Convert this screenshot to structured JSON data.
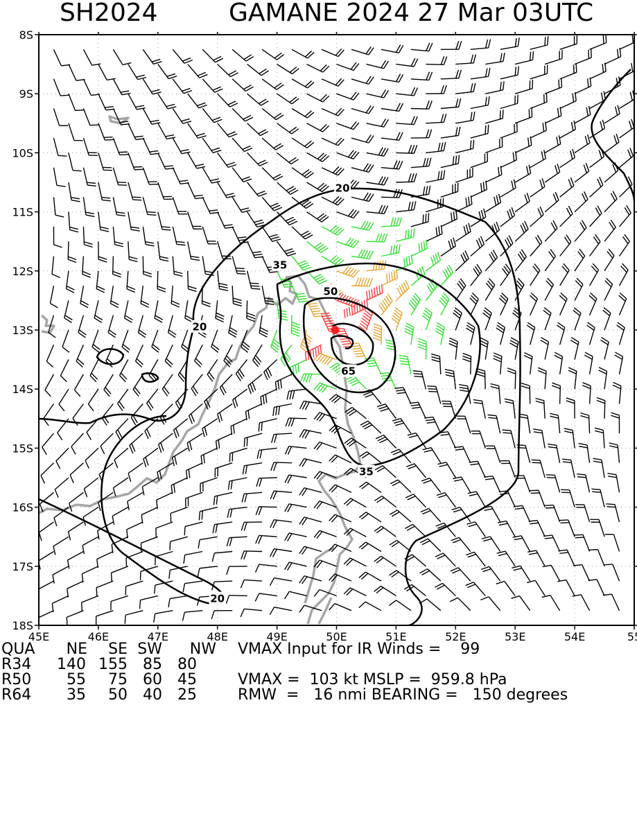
{
  "header": {
    "basin_id": "SH2024",
    "storm": "GAMANE 2024 27 Mar 03UTC"
  },
  "map": {
    "lat_labels": [
      "8S",
      "9S",
      "10S",
      "11S",
      "12S",
      "13S",
      "14S",
      "15S",
      "16S",
      "17S",
      "18S"
    ],
    "lon_labels": [
      "45E",
      "46E",
      "47E",
      "48E",
      "49E",
      "50E",
      "51E",
      "52E",
      "53E",
      "54E",
      "55"
    ],
    "contour_labels": [
      {
        "text": "20",
        "x": 50.1,
        "y": -10.6
      },
      {
        "text": "20",
        "x": 47.7,
        "y": -12.95
      },
      {
        "text": "20",
        "x": 48.0,
        "y": -17.55
      },
      {
        "text": "35",
        "x": 49.05,
        "y": -11.9
      },
      {
        "text": "35",
        "x": 50.5,
        "y": -15.4
      },
      {
        "text": "50",
        "x": 49.9,
        "y": -12.35
      },
      {
        "text": "65",
        "x": 50.2,
        "y": -13.7
      }
    ],
    "center": {
      "lon": 50.0,
      "lat": -13.0
    },
    "colors": {
      "contour": "#000000",
      "coast": "#a6a6a6",
      "barb_lt34": "#000000",
      "barb_34_50": "#2ee02e",
      "barb_50_64": "#e8a430",
      "barb_ge64": "#ff3b3b",
      "center": "#ff2020"
    }
  },
  "table": {
    "header": [
      "QUA",
      "NE",
      "SE",
      "SW",
      "NW"
    ],
    "rows": [
      {
        "label": "R34",
        "values": [
          "140",
          "155",
          "85",
          "80"
        ]
      },
      {
        "label": "R50",
        "values": [
          "55",
          "75",
          "60",
          "45"
        ]
      },
      {
        "label": "R64",
        "values": [
          "35",
          "50",
          "40",
          "25"
        ]
      }
    ],
    "info": {
      "line1": "VMAX Input for IR Winds =    99",
      "line3": "VMAX =  103 kt MSLP =  959.8 hPa",
      "line4": "RMW  =   16 nmi BEARING =   150 degrees"
    }
  }
}
